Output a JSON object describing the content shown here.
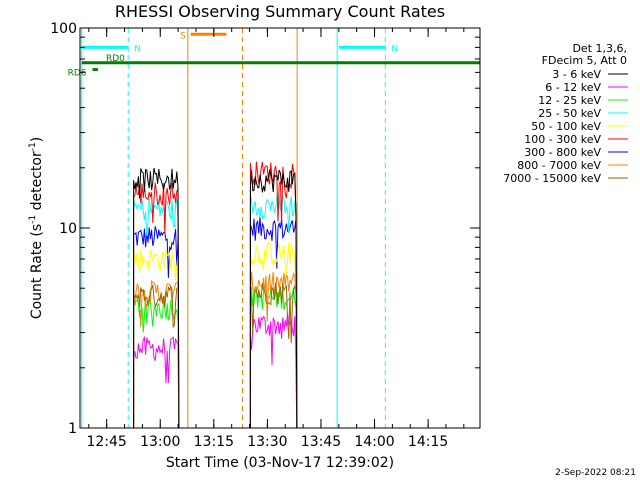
{
  "chart_data": {
    "type": "line",
    "title": "RHESSI Observing Summary Count Rates",
    "xlabel": "Start Time (03-Nov-17 12:39:02)",
    "ylabel_main": "Count Rate (s",
    "ylabel_sup1": "-1",
    "ylabel_mid": " detector",
    "ylabel_sup2": "-1",
    "ylabel_end": ")",
    "x_axis_minutes": [
      -1.5,
      110.5
    ],
    "x_ticks": [
      {
        "label": "12:45",
        "t": 5.97
      },
      {
        "label": "13:00",
        "t": 20.97
      },
      {
        "label": "13:15",
        "t": 35.97
      },
      {
        "label": "13:30",
        "t": 50.97
      },
      {
        "label": "13:45",
        "t": 65.97
      },
      {
        "label": "14:00",
        "t": 80.97
      },
      {
        "label": "14:15",
        "t": 95.97
      }
    ],
    "y_scale": "log",
    "ylim": [
      1,
      100
    ],
    "y_ticks": [
      {
        "label": "1",
        "v": 1
      },
      {
        "label": "10",
        "v": 10
      },
      {
        "label": "100",
        "v": 100
      }
    ],
    "legend_header": [
      "Det 1,3,6,",
      "FDecim 5, Att 0"
    ],
    "series": [
      {
        "name": "3 - 6 keV",
        "color": "#000000",
        "seg1": 17.5,
        "seg2": 17.5
      },
      {
        "name": "6 - 12 keV",
        "color": "#ff00ff",
        "seg1": 2.5,
        "seg2": 3.3
      },
      {
        "name": "12 - 25 keV",
        "color": "#00ff00",
        "seg1": 4.0,
        "seg2": 4.5
      },
      {
        "name": "25 - 50 keV",
        "color": "#00ffff",
        "seg1": 12.5,
        "seg2": 13.0
      },
      {
        "name": "50 - 100 keV",
        "color": "#ffff00",
        "seg1": 7.0,
        "seg2": 7.5
      },
      {
        "name": "100 - 300 keV",
        "color": "#ff0000",
        "seg1": 15.0,
        "seg2": 19.0
      },
      {
        "name": "300 - 800 keV",
        "color": "#0000ff",
        "seg1": 9.0,
        "seg2": 10.0
      },
      {
        "name": "800 - 7000 keV",
        "color": "#ff8000",
        "seg1": 4.8,
        "seg2": 5.3
      },
      {
        "name": "7000 - 15000 keV",
        "color": "#9a6600",
        "seg1": 4.6,
        "seg2": 4.8
      }
    ],
    "data_segments": [
      {
        "start": 13.5,
        "end": 26.2
      },
      {
        "start": 46.2,
        "end": 59.2
      }
    ],
    "flag_bars": [
      {
        "label": "N",
        "color": "#00ffff",
        "y": 80,
        "start": -1.0,
        "end": 12.0
      },
      {
        "label": "N",
        "color": "#00ffff",
        "y": 80,
        "start": 71.0,
        "end": 84.0
      },
      {
        "label": "S",
        "color": "#ff8000",
        "y": 93,
        "start": 29.5,
        "end": 39.5
      },
      {
        "label": "RD0",
        "color": "#008000",
        "y": 67,
        "start": -1.0,
        "end": 110.5
      },
      {
        "label": "RD6",
        "color": "#008000",
        "y": 62,
        "start": 2.0,
        "end": 3.5
      }
    ],
    "vlines": [
      {
        "t": -1.0,
        "color": "#00ffff",
        "style": "solid"
      },
      {
        "t": 12.0,
        "color": "#00ffff",
        "style": "dashed"
      },
      {
        "t": 28.7,
        "color": "#ff8000",
        "style": "solid"
      },
      {
        "t": 44.0,
        "color": "#ff8000",
        "style": "dashed"
      },
      {
        "t": 70.5,
        "color": "#00ffff",
        "style": "solid"
      },
      {
        "t": 84.0,
        "color": "#00ffff",
        "style": "dashed"
      },
      {
        "t": 59.3,
        "color": "#ff8000",
        "style": "solid"
      }
    ],
    "legend_position": "right",
    "footer_date": "2-Sep-2022 08:21"
  }
}
